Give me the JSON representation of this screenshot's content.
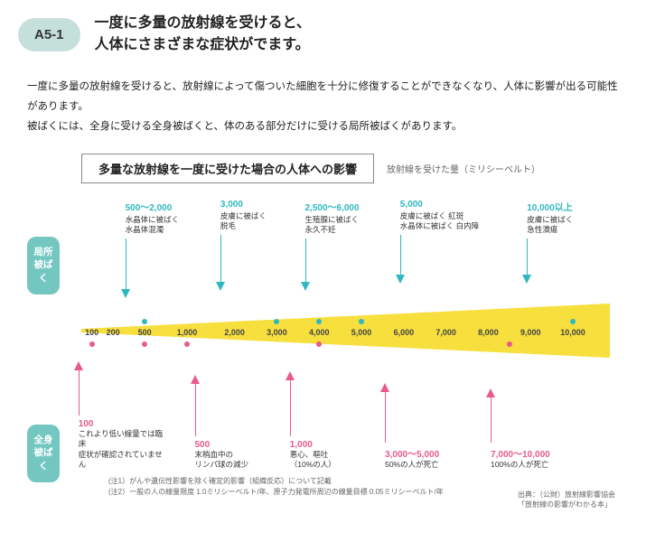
{
  "header": {
    "code": "A5-1",
    "title": "一度に多量の放射線を受けると、\n人体にさまざまな症状がでます。"
  },
  "intro": "一度に多量の放射線を受けると、放射線によって傷ついた細胞を十分に修復することができなくなり、人体に影響が出る可能性があります。\n被ばくには、全身に受ける全身被ばくと、体のある部分だけに受ける局所被ばくがあります。",
  "chart": {
    "title": "多量な放射線を一度に受けた場合の人体への影響",
    "unit_label": "放射線を受けた量（ミリシーベルト）",
    "side": {
      "local": "局所\n被ばく",
      "whole": "全身\n被ばく"
    },
    "scale_ticks": [
      {
        "v": 100,
        "pct": 2
      },
      {
        "v": 200,
        "pct": 6
      },
      {
        "v": 500,
        "pct": 12
      },
      {
        "v": 1000,
        "pct": 20
      },
      {
        "v": 2000,
        "pct": 29
      },
      {
        "v": 3000,
        "pct": 37
      },
      {
        "v": 4000,
        "pct": 45
      },
      {
        "v": 5000,
        "pct": 53
      },
      {
        "v": 6000,
        "pct": 61
      },
      {
        "v": 7000,
        "pct": 69
      },
      {
        "v": 8000,
        "pct": 77
      },
      {
        "v": 9000,
        "pct": 85
      },
      {
        "v": 10000,
        "pct": 93
      }
    ],
    "wedge": {
      "fill": "#f7df3e",
      "stroke": "#f2d419"
    },
    "local_effects": [
      {
        "dose": "500～2,000",
        "desc": "水晶体に被ばく\n水晶体混濁",
        "pct": 16,
        "dot_pct": 12,
        "line_h": 56
      },
      {
        "dose": "3,000",
        "desc": "皮膚に被ばく\n脱毛",
        "pct": 34,
        "dot_pct": 37,
        "line_h": 52
      },
      {
        "dose": "2,500～6,000",
        "desc": "生殖腺に被ばく\n永久不妊",
        "pct": 50,
        "dot_pct": 45,
        "line_h": 48
      },
      {
        "dose": "5,000",
        "desc": "皮膚に被ばく 紅斑\n水晶体に被ばく 白内障",
        "pct": 68,
        "dot_pct": 53,
        "line_h": 44
      },
      {
        "dose": "10,000以上",
        "desc": "皮膚に被ばく\n急性潰瘍",
        "pct": 92,
        "dot_pct": 93,
        "line_h": 40
      }
    ],
    "whole_effects": [
      {
        "dose": "100",
        "desc": "これより低い線量では臨床\n症状が確認されていません",
        "pct": 8,
        "dot_pct": 2,
        "line_h": 50
      },
      {
        "dose": "500",
        "desc": "末梢血中の\nリンパ球の減少",
        "pct": 30,
        "dot_pct": 12,
        "line_h": 58
      },
      {
        "dose": "1,000",
        "desc": "悪心、嘔吐\n（10%の人）",
        "pct": 48,
        "dot_pct": 20,
        "line_h": 62
      },
      {
        "dose": "3,000～5,000",
        "desc": "50%の人が死亡",
        "pct": 66,
        "dot_pct": 45,
        "line_h": 56
      },
      {
        "dose": "7,000～10,000",
        "desc": "100%の人が死亡",
        "pct": 86,
        "dot_pct": 81,
        "line_h": 50
      }
    ],
    "notes": [
      "(注1）がんや遺伝性影響を除く確定的影響（組織反応）について記載",
      "(注2）一般の人の線量限度 1.0ミリシーベルト/年、原子力発電所周辺の線量目標 0.05ミリシーベルト/年"
    ],
    "source": "出典：（公財）放射線影響協会\n「放射線の影響がわかる本」"
  },
  "colors": {
    "badge_bg": "#c5e0da",
    "side_bg": "#74c7c1",
    "top_accent": "#2fb8bf",
    "bot_accent": "#e85a8a",
    "wedge": "#f7df3e"
  }
}
